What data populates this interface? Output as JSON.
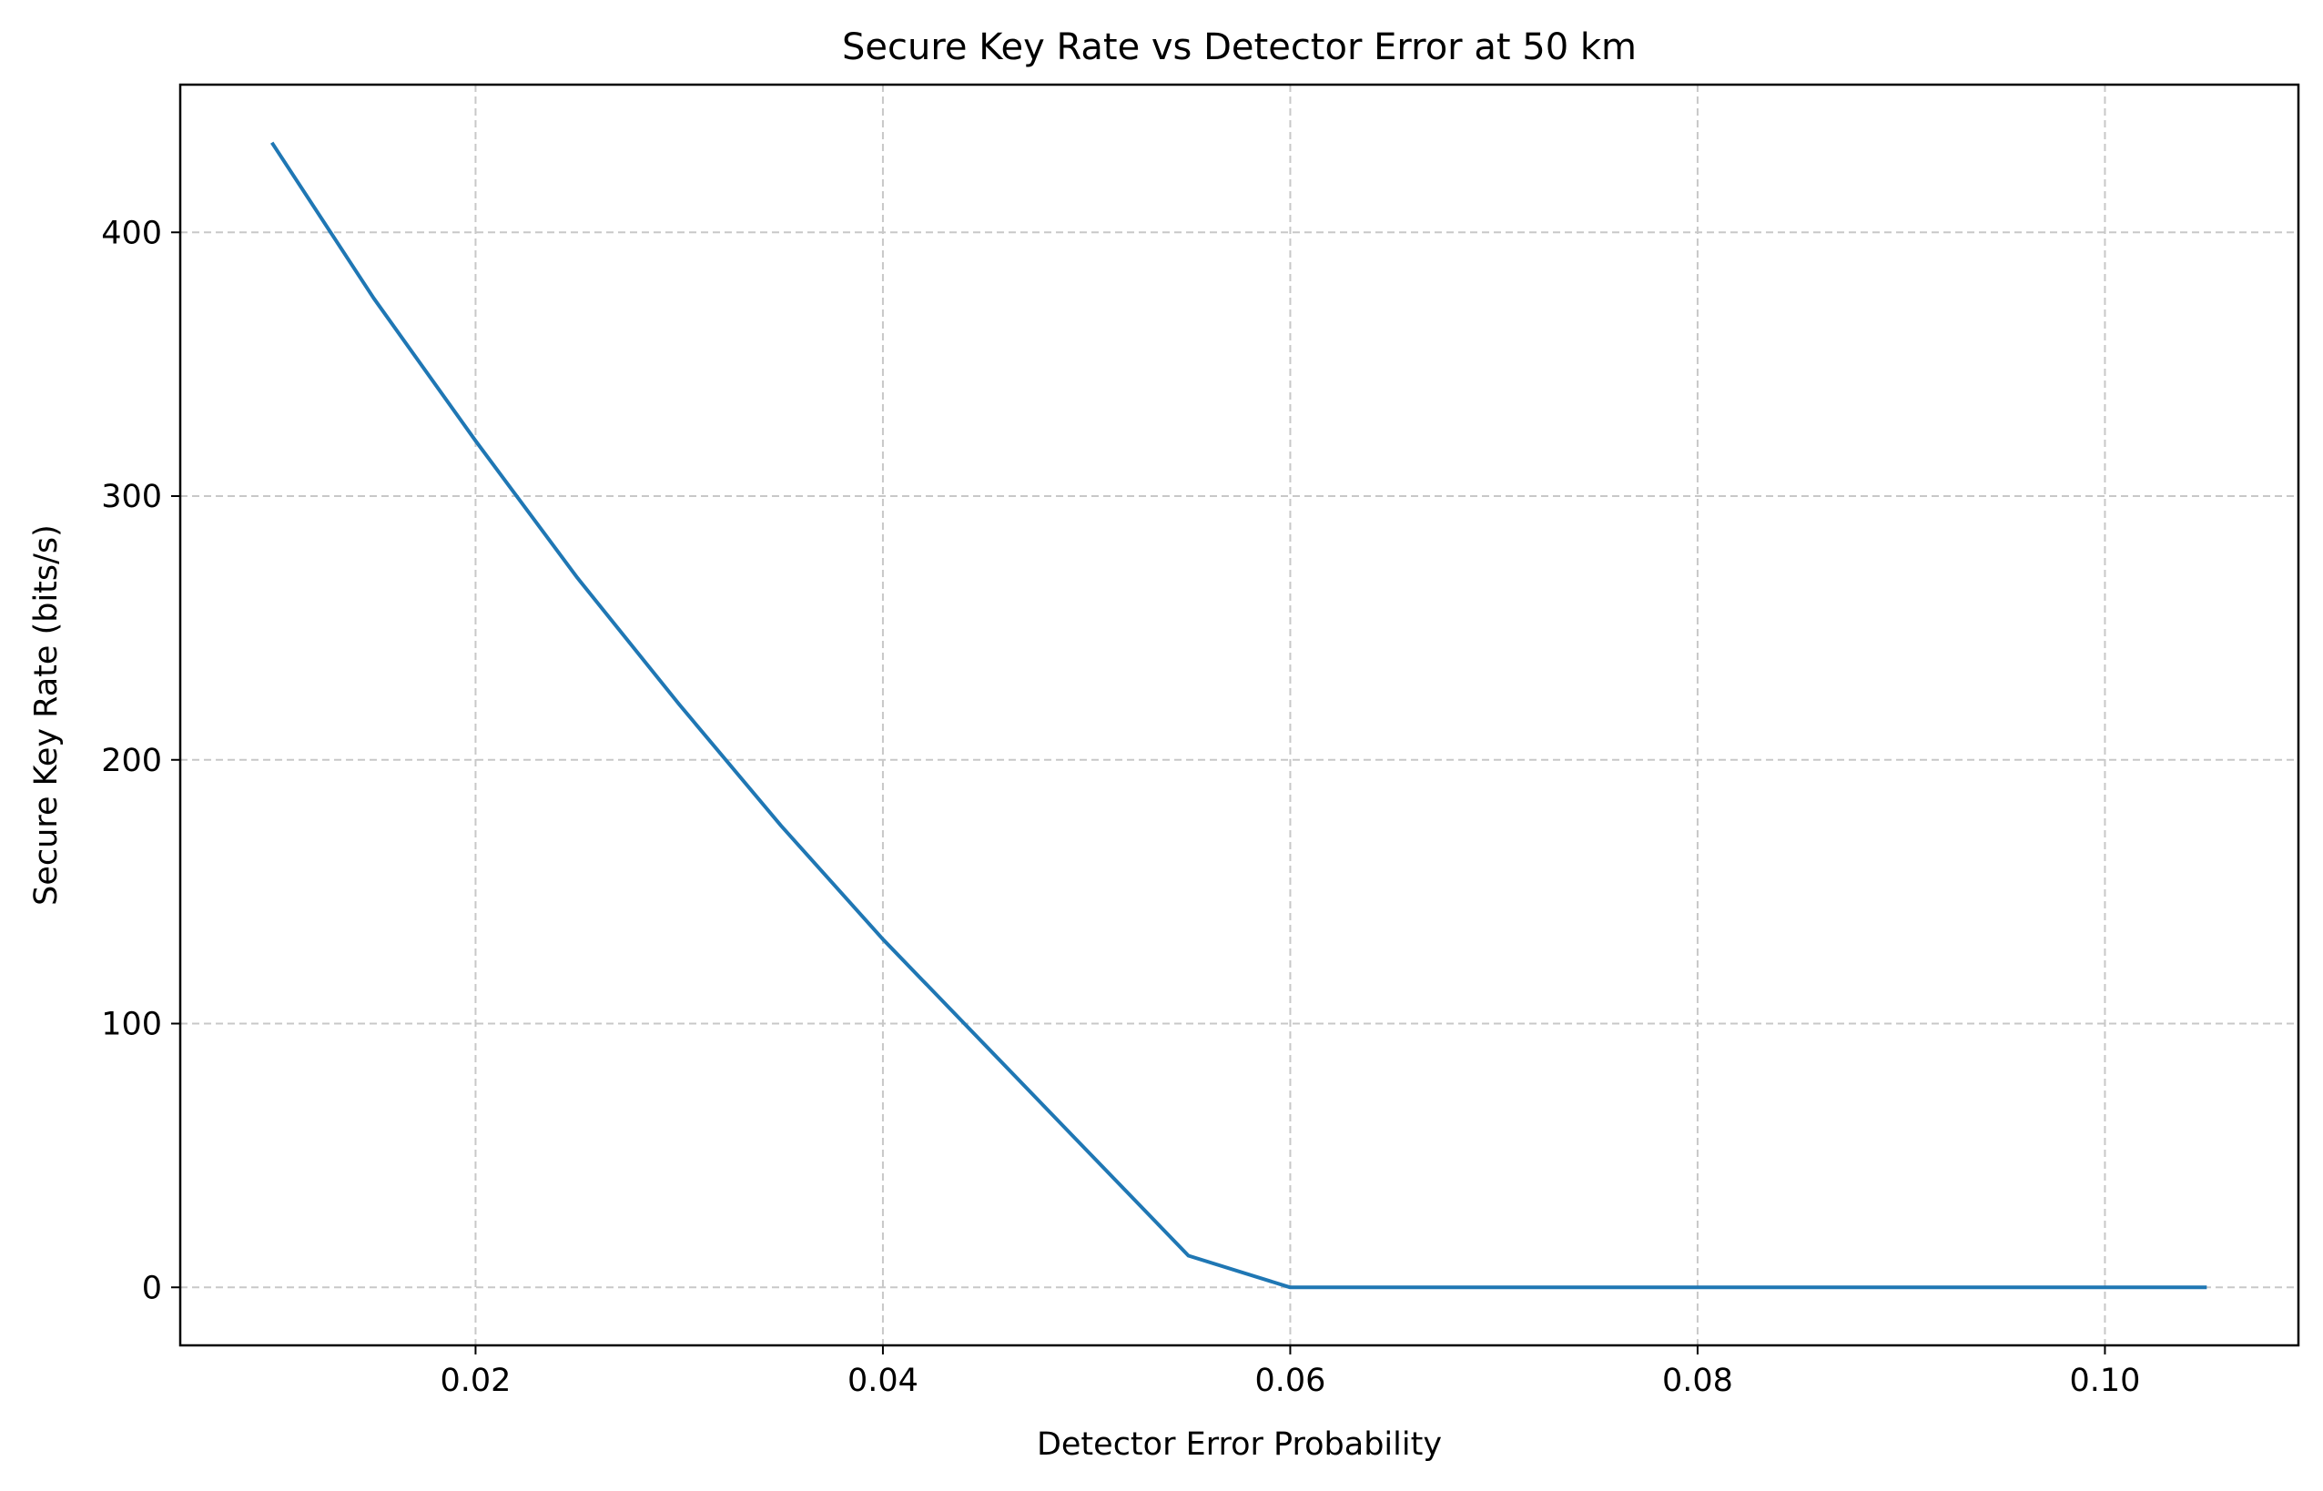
{
  "chart_data": {
    "type": "line",
    "title": "Secure Key Rate vs Detector Error at 50 km",
    "xlabel": "Detector Error Probability",
    "ylabel": "Secure Key Rate (bits/s)",
    "xlim": [
      0.0055,
      0.1095
    ],
    "ylim": [
      -22,
      456
    ],
    "xticks": [
      0.02,
      0.04,
      0.06,
      0.08,
      0.1
    ],
    "xtick_labels": [
      "0.02",
      "0.04",
      "0.06",
      "0.08",
      "0.10"
    ],
    "yticks": [
      0,
      100,
      200,
      300,
      400
    ],
    "ytick_labels": [
      "0",
      "100",
      "200",
      "300",
      "400"
    ],
    "grid": true,
    "series": [
      {
        "color": "#1f77b4",
        "x": [
          0.01,
          0.015,
          0.02,
          0.025,
          0.03,
          0.035,
          0.04,
          0.045,
          0.05,
          0.055,
          0.06,
          0.065,
          0.07,
          0.075,
          0.08,
          0.085,
          0.09,
          0.095,
          0.1,
          0.105
        ],
        "y": [
          434,
          375,
          321,
          269,
          221,
          175,
          132,
          92,
          52,
          12,
          0,
          0,
          0,
          0,
          0,
          0,
          0,
          0,
          0,
          0
        ]
      }
    ]
  }
}
